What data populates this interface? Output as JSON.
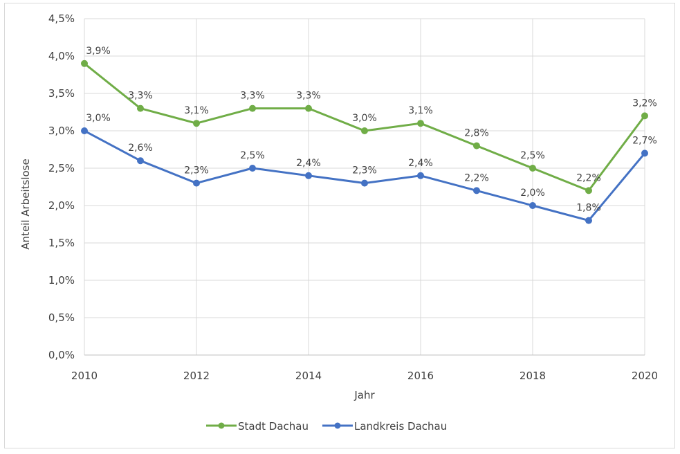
{
  "chart_data": {
    "type": "line",
    "title": "",
    "xlabel": "Jahr",
    "ylabel": "Anteil Arbeitslose",
    "x": [
      2010,
      2011,
      2012,
      2013,
      2014,
      2015,
      2016,
      2017,
      2018,
      2019,
      2020
    ],
    "xlim": [
      2010,
      2020
    ],
    "x_ticks": [
      "2010",
      "2012",
      "2014",
      "2016",
      "2018",
      "2020"
    ],
    "x_tick_values": [
      2010,
      2012,
      2014,
      2016,
      2018,
      2020
    ],
    "ylim": [
      0,
      4.5
    ],
    "y_ticks": [
      "0,0%",
      "0,5%",
      "1,0%",
      "1,5%",
      "2,0%",
      "2,5%",
      "3,0%",
      "3,5%",
      "4,0%",
      "4,5%"
    ],
    "y_tick_values": [
      0,
      0.5,
      1.0,
      1.5,
      2.0,
      2.5,
      3.0,
      3.5,
      4.0,
      4.5
    ],
    "grid": true,
    "legend_position": "bottom",
    "series": [
      {
        "name": "Stadt Dachau",
        "color": "#70ad47",
        "values": [
          3.9,
          3.3,
          3.1,
          3.3,
          3.3,
          3.0,
          3.1,
          2.8,
          2.5,
          2.2,
          3.2
        ],
        "labels": [
          "3,9%",
          "3,3%",
          "3,1%",
          "3,3%",
          "3,3%",
          "3,0%",
          "3,1%",
          "2,8%",
          "2,5%",
          "2,2%",
          "3,2%"
        ]
      },
      {
        "name": "Landkreis Dachau",
        "color": "#4472c4",
        "values": [
          3.0,
          2.6,
          2.3,
          2.5,
          2.4,
          2.3,
          2.4,
          2.2,
          2.0,
          1.8,
          2.7
        ],
        "labels": [
          "3,0%",
          "2,6%",
          "2,3%",
          "2,5%",
          "2,4%",
          "2,3%",
          "2,4%",
          "2,2%",
          "2,0%",
          "1,8%",
          "2,7%"
        ]
      }
    ]
  },
  "colors": {
    "grid": "#d9d9d9",
    "text": "#404040"
  }
}
